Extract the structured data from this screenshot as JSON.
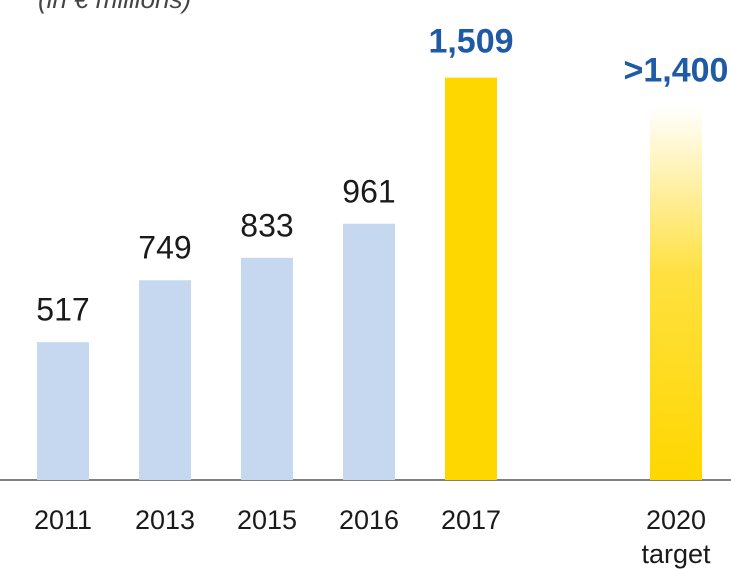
{
  "chart_data": {
    "type": "bar",
    "subtitle": "(in € millions)",
    "categories": [
      "2011",
      "2013",
      "2015",
      "2016",
      "2017",
      "2020\ntarget"
    ],
    "values": [
      517,
      749,
      833,
      961,
      1509,
      1400
    ],
    "value_labels": [
      "517",
      "749",
      "833",
      "961",
      "1,509",
      ">1,400"
    ],
    "colors": [
      "#c6d8f0",
      "#c6d8f0",
      "#c6d8f0",
      "#c6d8f0",
      "#ffd700",
      "#ffd700"
    ],
    "ylim": [
      0,
      1800
    ]
  }
}
